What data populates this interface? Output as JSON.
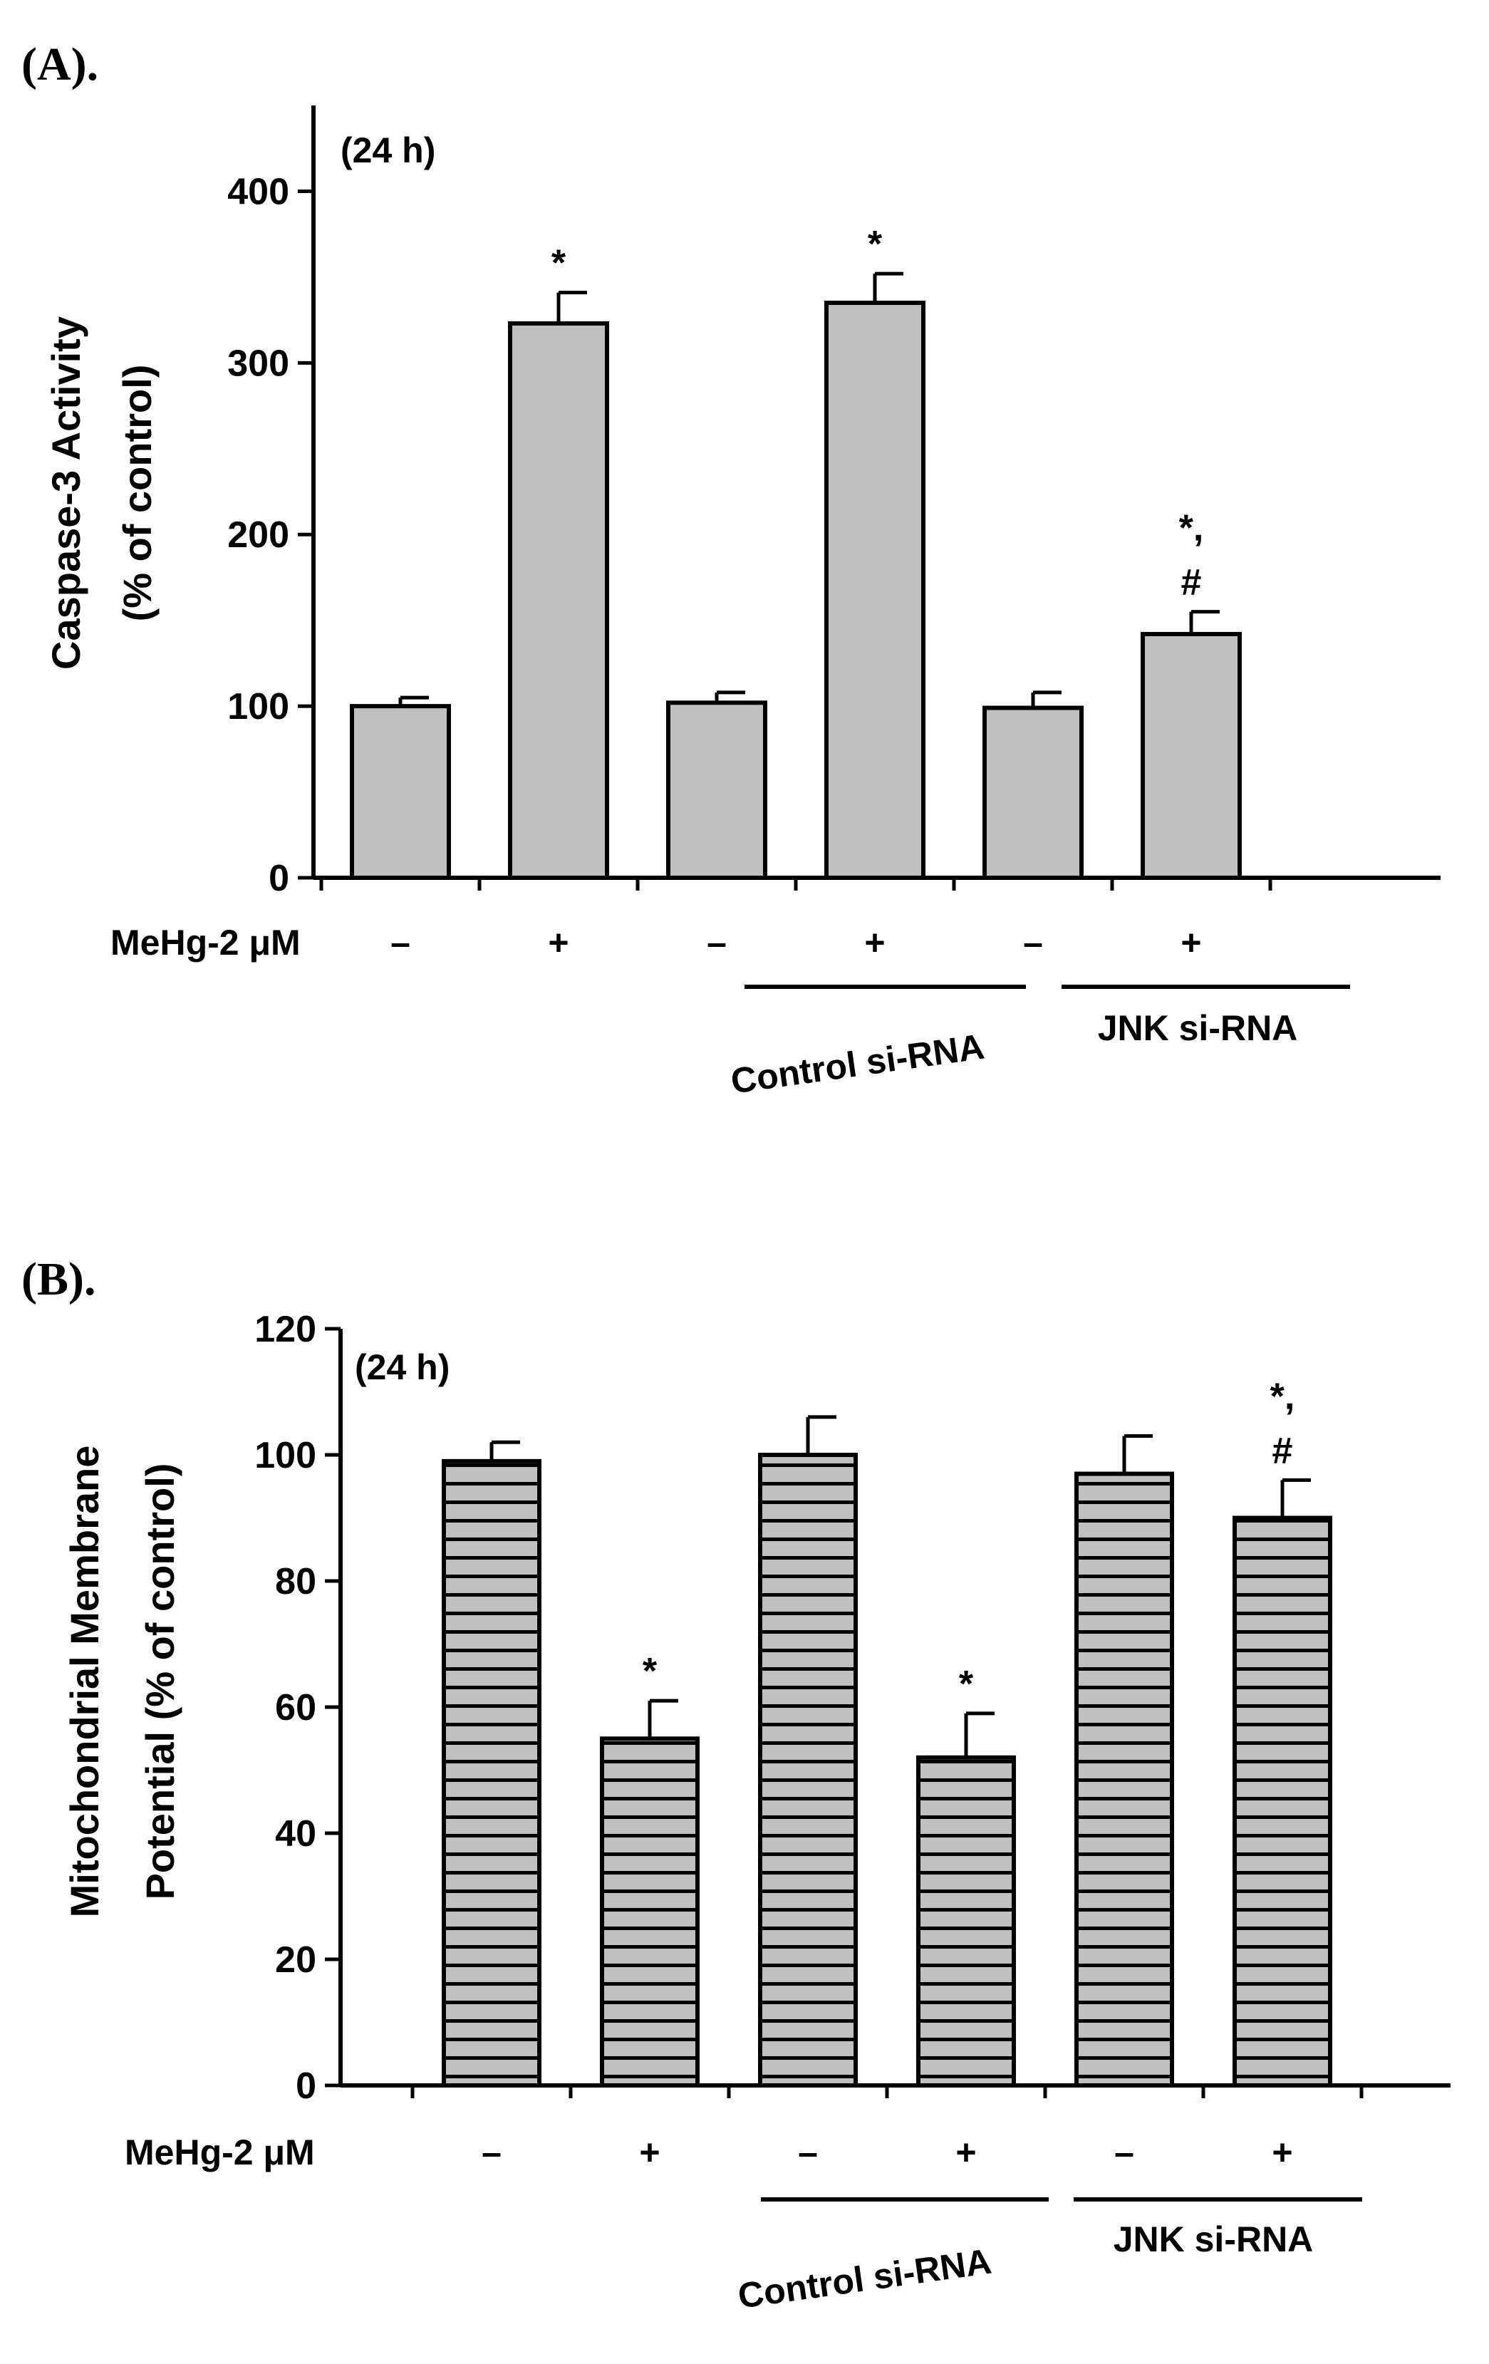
{
  "colors": {
    "bar_fill": "#c0c0c0",
    "ink": "#000000",
    "background": "#ffffff"
  },
  "chart_data": [
    {
      "panel_label": "(A).",
      "type": "bar",
      "pattern": "solid",
      "annotation": "(24 h)",
      "ylabel_lines": [
        "Caspase-3 Activity",
        "(% of control)"
      ],
      "ylim": [
        0,
        450
      ],
      "ticks": [
        0,
        100,
        200,
        300,
        400
      ],
      "tick_labels": [
        "0",
        "100",
        "200",
        "300",
        "400"
      ],
      "treatment_label": "MeHg-2 μM",
      "categories": [
        "–",
        "+",
        "–",
        "+",
        "–",
        "+"
      ],
      "values": [
        100,
        323,
        102,
        335,
        99,
        142
      ],
      "errors": [
        5,
        18,
        6,
        17,
        9,
        13
      ],
      "significance": [
        [],
        [
          "*"
        ],
        [],
        [
          "*"
        ],
        [],
        [
          "*,",
          "#"
        ]
      ],
      "groups": [
        {
          "label": "Control si-RNA",
          "from": 2,
          "to": 3
        },
        {
          "label": "JNK si-RNA",
          "from": 4,
          "to": 5
        }
      ]
    },
    {
      "panel_label": "(B).",
      "type": "bar",
      "pattern": "horizontal-stripes",
      "annotation": "(24 h)",
      "ylabel_lines": [
        "Mitochondrial Membrane",
        "Potential (% of control)"
      ],
      "ylim": [
        0,
        120
      ],
      "ticks": [
        0,
        20,
        40,
        60,
        80,
        100,
        120
      ],
      "tick_labels": [
        "0",
        "20",
        "40",
        "60",
        "80",
        "100",
        "120"
      ],
      "treatment_label": "MeHg-2 μM",
      "categories": [
        "–",
        "+",
        "–",
        "+",
        "–",
        "+"
      ],
      "values": [
        99,
        55,
        100,
        52,
        97,
        90
      ],
      "errors": [
        3,
        6,
        6,
        7,
        6,
        6
      ],
      "significance": [
        [],
        [
          "*"
        ],
        [],
        [
          "*"
        ],
        [],
        [
          "*,",
          "#"
        ]
      ],
      "groups": [
        {
          "label": "Control si-RNA",
          "from": 2,
          "to": 3
        },
        {
          "label": "JNK si-RNA",
          "from": 4,
          "to": 5
        }
      ]
    }
  ]
}
